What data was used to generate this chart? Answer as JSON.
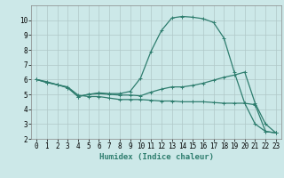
{
  "xlabel": "Humidex (Indice chaleur)",
  "background_color": "#cce8e8",
  "grid_color": "#b0c8c8",
  "line_color": "#2e7d6e",
  "xlim": [
    -0.5,
    23.5
  ],
  "ylim": [
    2,
    11
  ],
  "xticks": [
    0,
    1,
    2,
    3,
    4,
    5,
    6,
    7,
    8,
    9,
    10,
    11,
    12,
    13,
    14,
    15,
    16,
    17,
    18,
    19,
    20,
    21,
    22,
    23
  ],
  "yticks": [
    2,
    3,
    4,
    5,
    6,
    7,
    8,
    9,
    10
  ],
  "line1_x": [
    0,
    1,
    2,
    3,
    4,
    5,
    6,
    7,
    8,
    9,
    10,
    11,
    12,
    13,
    14,
    15,
    16,
    17,
    18,
    19,
    20,
    21,
    22,
    23
  ],
  "line1_y": [
    6.0,
    5.85,
    5.65,
    5.5,
    4.95,
    4.85,
    4.85,
    4.75,
    4.65,
    4.65,
    4.65,
    4.6,
    4.55,
    4.55,
    4.5,
    4.5,
    4.5,
    4.45,
    4.4,
    4.4,
    4.4,
    4.3,
    2.5,
    2.4
  ],
  "line2_x": [
    0,
    1,
    2,
    3,
    4,
    5,
    6,
    7,
    8,
    9,
    10,
    11,
    12,
    13,
    14,
    15,
    16,
    17,
    18,
    19,
    20,
    21,
    22,
    23
  ],
  "line2_y": [
    6.0,
    5.8,
    5.65,
    5.45,
    4.85,
    5.0,
    5.05,
    5.0,
    4.95,
    4.95,
    4.9,
    5.15,
    5.35,
    5.5,
    5.5,
    5.6,
    5.75,
    5.95,
    6.15,
    6.3,
    6.5,
    4.4,
    3.0,
    2.4
  ],
  "line3_x": [
    0,
    1,
    2,
    3,
    4,
    5,
    6,
    7,
    8,
    9,
    10,
    11,
    12,
    13,
    14,
    15,
    16,
    17,
    18,
    19,
    20,
    21,
    22,
    23
  ],
  "line3_y": [
    6.0,
    5.8,
    5.65,
    5.45,
    4.85,
    5.0,
    5.1,
    5.05,
    5.05,
    5.2,
    6.1,
    7.9,
    9.3,
    10.15,
    10.25,
    10.2,
    10.1,
    9.85,
    8.8,
    6.5,
    4.4,
    3.0,
    2.5,
    2.4
  ],
  "marker": "+",
  "markersize": 3,
  "linewidth": 0.9,
  "tick_fontsize": 5.5,
  "label_fontsize": 6.5
}
